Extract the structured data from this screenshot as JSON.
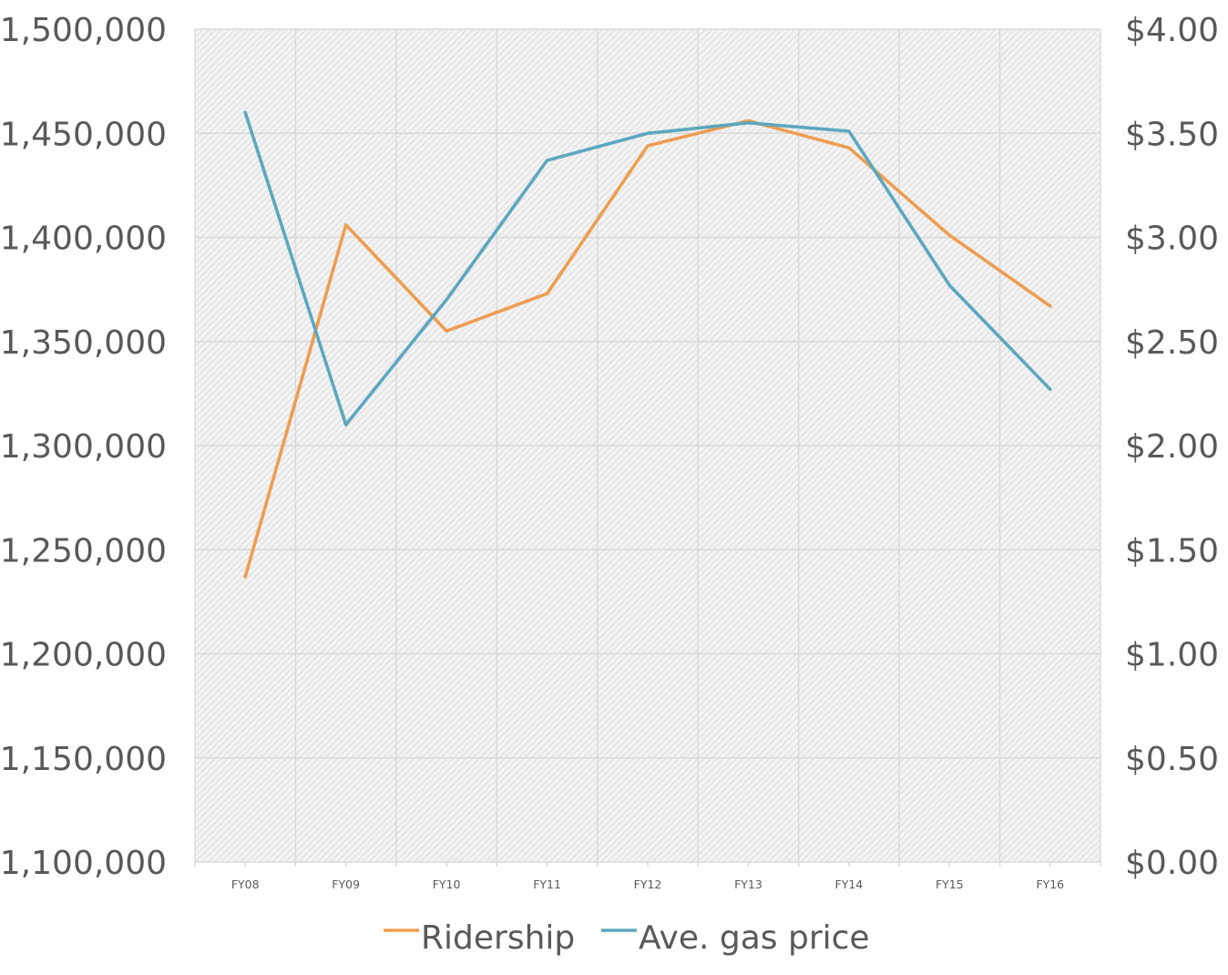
{
  "chart_data": {
    "type": "line",
    "categories": [
      "FY08",
      "FY09",
      "FY10",
      "FY11",
      "FY12",
      "FY13",
      "FY14",
      "FY15",
      "FY16"
    ],
    "series": [
      {
        "name": "Ridership",
        "axis": "left",
        "color": "#ED9D52",
        "values": [
          1237000,
          1406000,
          1355000,
          1373000,
          1444000,
          1456000,
          1443000,
          1401000,
          1367000
        ]
      },
      {
        "name": "Ave. gas price",
        "axis": "right",
        "color": "#5DA7BF",
        "values": [
          3.6,
          2.1,
          2.7,
          3.37,
          3.5,
          3.55,
          3.51,
          2.77,
          2.27
        ]
      }
    ],
    "y_left": {
      "ylim": [
        1100000,
        1500000
      ],
      "ticks": [
        "1,100,000",
        "1,150,000",
        "1,200,000",
        "1,250,000",
        "1,300,000",
        "1,350,000",
        "1,400,000",
        "1,450,000",
        "1,500,000"
      ]
    },
    "y_right": {
      "ylim": [
        0,
        4
      ],
      "ticks": [
        "$0.00",
        "$0.50",
        "$1.00",
        "$1.50",
        "$2.00",
        "$2.50",
        "$3.00",
        "$3.50",
        "$4.00"
      ]
    },
    "grid": true,
    "plot_background": "hatched light gray",
    "legend": "bottom-center",
    "title": "",
    "xlabel": "",
    "ylabel": ""
  }
}
